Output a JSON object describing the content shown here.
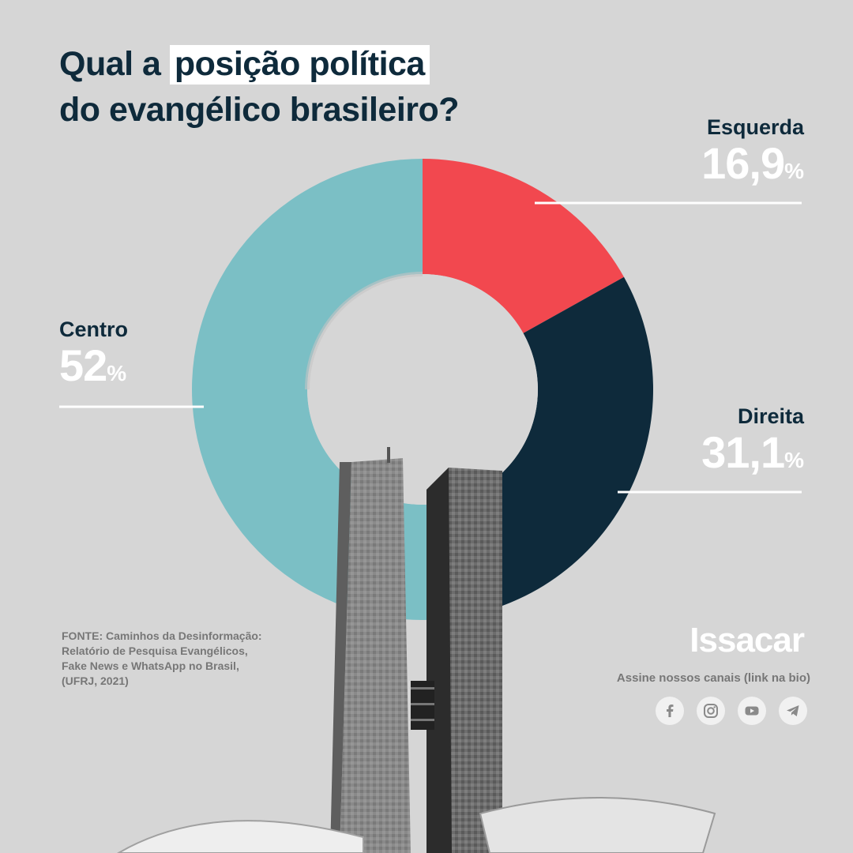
{
  "title": {
    "line1_pre": "Qual a ",
    "line1_highlight": "posição política",
    "line2": "do evangélico brasileiro?"
  },
  "chart_data": {
    "type": "pie",
    "variant": "donut",
    "unit": "%",
    "start_angle_deg": 0,
    "direction": "clockwise",
    "series": [
      {
        "name": "Esquerda",
        "value": 16.9,
        "label": "16,9",
        "color": "#f2484f"
      },
      {
        "name": "Direita",
        "value": 31.1,
        "label": "31,1",
        "color": "#0e2a3b"
      },
      {
        "name": "Centro",
        "value": 52,
        "label": "52",
        "color": "#7bbfc5"
      }
    ]
  },
  "labels": {
    "percent_sign": "%"
  },
  "source": {
    "line1": "FONTE: Caminhos da Desinformação:",
    "line2": "Relatório de Pesquisa Evangélicos,",
    "line3": "Fake News e WhatsApp no Brasil,",
    "line4": "(UFRJ, 2021)"
  },
  "brand": {
    "name": "Issacar",
    "tagline": "Assine nossos canais (link na bio)"
  },
  "socials": [
    {
      "icon": "facebook-icon"
    },
    {
      "icon": "instagram-icon"
    },
    {
      "icon": "youtube-icon"
    },
    {
      "icon": "telegram-icon"
    }
  ],
  "colors": {
    "background": "#d6d6d6",
    "navy": "#0e2a3b",
    "teal": "#7bbfc5",
    "red": "#f2484f"
  }
}
